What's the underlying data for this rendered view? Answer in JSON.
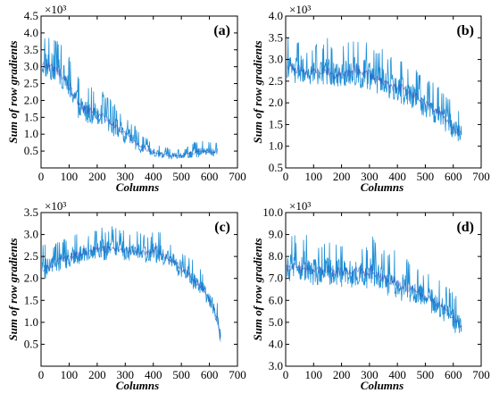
{
  "chart_data": [
    {
      "type": "line",
      "panel_label": "(a)",
      "xlabel": "Columns",
      "ylabel": "Sum of row gradients",
      "y_scale_label": "×10³",
      "xlim": [
        0,
        700
      ],
      "ylim": [
        0,
        4500
      ],
      "xticks": [
        "0",
        "100",
        "200",
        "300",
        "400",
        "500",
        "600",
        "700"
      ],
      "yticks": [
        "0.5",
        "1.0",
        "1.5",
        "2.0",
        "2.5",
        "3.0",
        "3.5",
        "4.0",
        "4.5"
      ],
      "ytick_values": [
        500,
        1000,
        1500,
        2000,
        2500,
        3000,
        3500,
        4000,
        4500
      ],
      "grid": false,
      "series": [
        {
          "color": "#1f8fd6",
          "x": [
            10,
            30,
            50,
            70,
            90,
            110,
            130,
            150,
            170,
            190,
            210,
            230,
            250,
            270,
            290,
            310,
            330,
            350,
            370,
            390,
            410,
            430,
            450,
            470,
            490,
            510,
            530,
            550,
            570,
            590,
            610,
            630
          ],
          "y_low": [
            2600,
            2500,
            2400,
            2300,
            2100,
            1800,
            1500,
            1300,
            1300,
            1250,
            1200,
            1100,
            950,
            850,
            750,
            650,
            550,
            450,
            380,
            330,
            300,
            280,
            270,
            260,
            260,
            260,
            280,
            300,
            320,
            330,
            340,
            350
          ],
          "y_high": [
            3900,
            4000,
            3900,
            3700,
            3500,
            3200,
            2800,
            2600,
            2500,
            2400,
            2300,
            2200,
            2000,
            1800,
            1700,
            1500,
            1300,
            1100,
            950,
            800,
            700,
            650,
            600,
            580,
            550,
            550,
            700,
            800,
            800,
            800,
            750,
            750
          ]
        }
      ]
    },
    {
      "type": "line",
      "panel_label": "(b)",
      "xlabel": "Columns",
      "ylabel": "Sum of row gradients",
      "y_scale_label": "×10³",
      "xlim": [
        0,
        700
      ],
      "ylim": [
        500,
        4000
      ],
      "xticks": [
        "0",
        "100",
        "200",
        "300",
        "400",
        "500",
        "600",
        "700"
      ],
      "yticks": [
        "0.5",
        "1.0",
        "1.5",
        "2.0",
        "2.5",
        "3.0",
        "3.5",
        "4.0"
      ],
      "ytick_values": [
        500,
        1000,
        1500,
        2000,
        2500,
        3000,
        3500,
        4000
      ],
      "grid": false,
      "series": [
        {
          "color": "#1f8fd6",
          "x": [
            10,
            30,
            50,
            70,
            90,
            110,
            130,
            150,
            170,
            190,
            210,
            230,
            250,
            270,
            290,
            310,
            330,
            350,
            370,
            390,
            410,
            430,
            450,
            470,
            490,
            510,
            530,
            550,
            570,
            590,
            610,
            630
          ],
          "y_low": [
            2500,
            2450,
            2400,
            2400,
            2400,
            2350,
            2350,
            2350,
            2300,
            2300,
            2300,
            2300,
            2300,
            2250,
            2250,
            2200,
            2150,
            2100,
            2050,
            2000,
            1950,
            1900,
            1850,
            1800,
            1700,
            1650,
            1550,
            1450,
            1350,
            1200,
            1100,
            1050
          ],
          "y_high": [
            3500,
            3300,
            3600,
            3300,
            3200,
            3400,
            3300,
            3500,
            3300,
            3300,
            3400,
            3400,
            3700,
            3400,
            3500,
            3300,
            3200,
            3300,
            3100,
            3000,
            3100,
            2900,
            2800,
            2800,
            2600,
            2500,
            2500,
            2400,
            2300,
            2100,
            1900,
            1700
          ]
        }
      ]
    },
    {
      "type": "line",
      "panel_label": "(c)",
      "xlabel": "Columns",
      "ylabel": "Sum of row gradients",
      "y_scale_label": "×10³",
      "xlim": [
        0,
        700
      ],
      "ylim": [
        0,
        3500
      ],
      "xticks": [
        "0",
        "100",
        "200",
        "300",
        "400",
        "500",
        "600",
        "700"
      ],
      "yticks": [
        "0.5",
        "1.0",
        "1.5",
        "2.0",
        "2.5",
        "3.0",
        "3.5"
      ],
      "ytick_values": [
        500,
        1000,
        1500,
        2000,
        2500,
        3000,
        3500
      ],
      "grid": false,
      "series": [
        {
          "color": "#1f8fd6",
          "x": [
            10,
            30,
            50,
            70,
            90,
            110,
            130,
            150,
            170,
            190,
            210,
            230,
            250,
            270,
            290,
            310,
            330,
            350,
            370,
            390,
            410,
            430,
            450,
            470,
            490,
            510,
            530,
            550,
            570,
            590,
            610,
            630,
            640
          ],
          "y_low": [
            1900,
            2000,
            2100,
            2150,
            2200,
            2250,
            2300,
            2350,
            2350,
            2400,
            2400,
            2400,
            2450,
            2400,
            2400,
            2400,
            2400,
            2400,
            2350,
            2350,
            2350,
            2300,
            2250,
            2200,
            2050,
            1950,
            1850,
            1700,
            1600,
            1400,
            1200,
            900,
            450
          ],
          "y_high": [
            2800,
            2700,
            2800,
            2900,
            2900,
            3000,
            3000,
            3100,
            3000,
            3100,
            3300,
            3100,
            3200,
            3200,
            3100,
            3100,
            3000,
            3100,
            3000,
            3000,
            3200,
            3000,
            2900,
            2800,
            2700,
            2600,
            2500,
            2400,
            2200,
            2000,
            1800,
            1400,
            800
          ]
        }
      ]
    },
    {
      "type": "line",
      "panel_label": "(d)",
      "xlabel": "Columns",
      "ylabel": "Sum of row gradients",
      "y_scale_label": "×10³",
      "xlim": [
        0,
        700
      ],
      "ylim": [
        3000,
        10000
      ],
      "xticks": [
        "0",
        "100",
        "200",
        "300",
        "400",
        "500",
        "600",
        "700"
      ],
      "yticks": [
        "3.0",
        "4.0",
        "5.0",
        "6.0",
        "7.0",
        "8.0",
        "9.0",
        "10.0"
      ],
      "ytick_values": [
        3000,
        4000,
        5000,
        6000,
        7000,
        8000,
        9000,
        10000
      ],
      "grid": false,
      "series": [
        {
          "color": "#1f8fd6",
          "x": [
            10,
            30,
            50,
            70,
            90,
            110,
            130,
            150,
            170,
            190,
            210,
            230,
            250,
            270,
            290,
            310,
            330,
            350,
            370,
            390,
            410,
            430,
            450,
            470,
            490,
            510,
            530,
            550,
            570,
            590,
            610,
            630
          ],
          "y_low": [
            6800,
            6800,
            6700,
            6700,
            6700,
            6700,
            6650,
            6650,
            6600,
            6600,
            6600,
            6600,
            6550,
            6550,
            6500,
            6500,
            6400,
            6300,
            6200,
            6100,
            6000,
            5900,
            5800,
            5700,
            5600,
            5500,
            5300,
            5100,
            4900,
            4700,
            4400,
            4200
          ],
          "y_high": [
            8800,
            9000,
            8600,
            9300,
            8500,
            8700,
            8600,
            8800,
            8500,
            8700,
            8600,
            8500,
            8700,
            8600,
            8500,
            9000,
            8400,
            8300,
            8200,
            8400,
            8100,
            7900,
            7800,
            7600,
            7400,
            7300,
            7100,
            7000,
            6800,
            6500,
            6200,
            5800
          ]
        }
      ]
    }
  ]
}
